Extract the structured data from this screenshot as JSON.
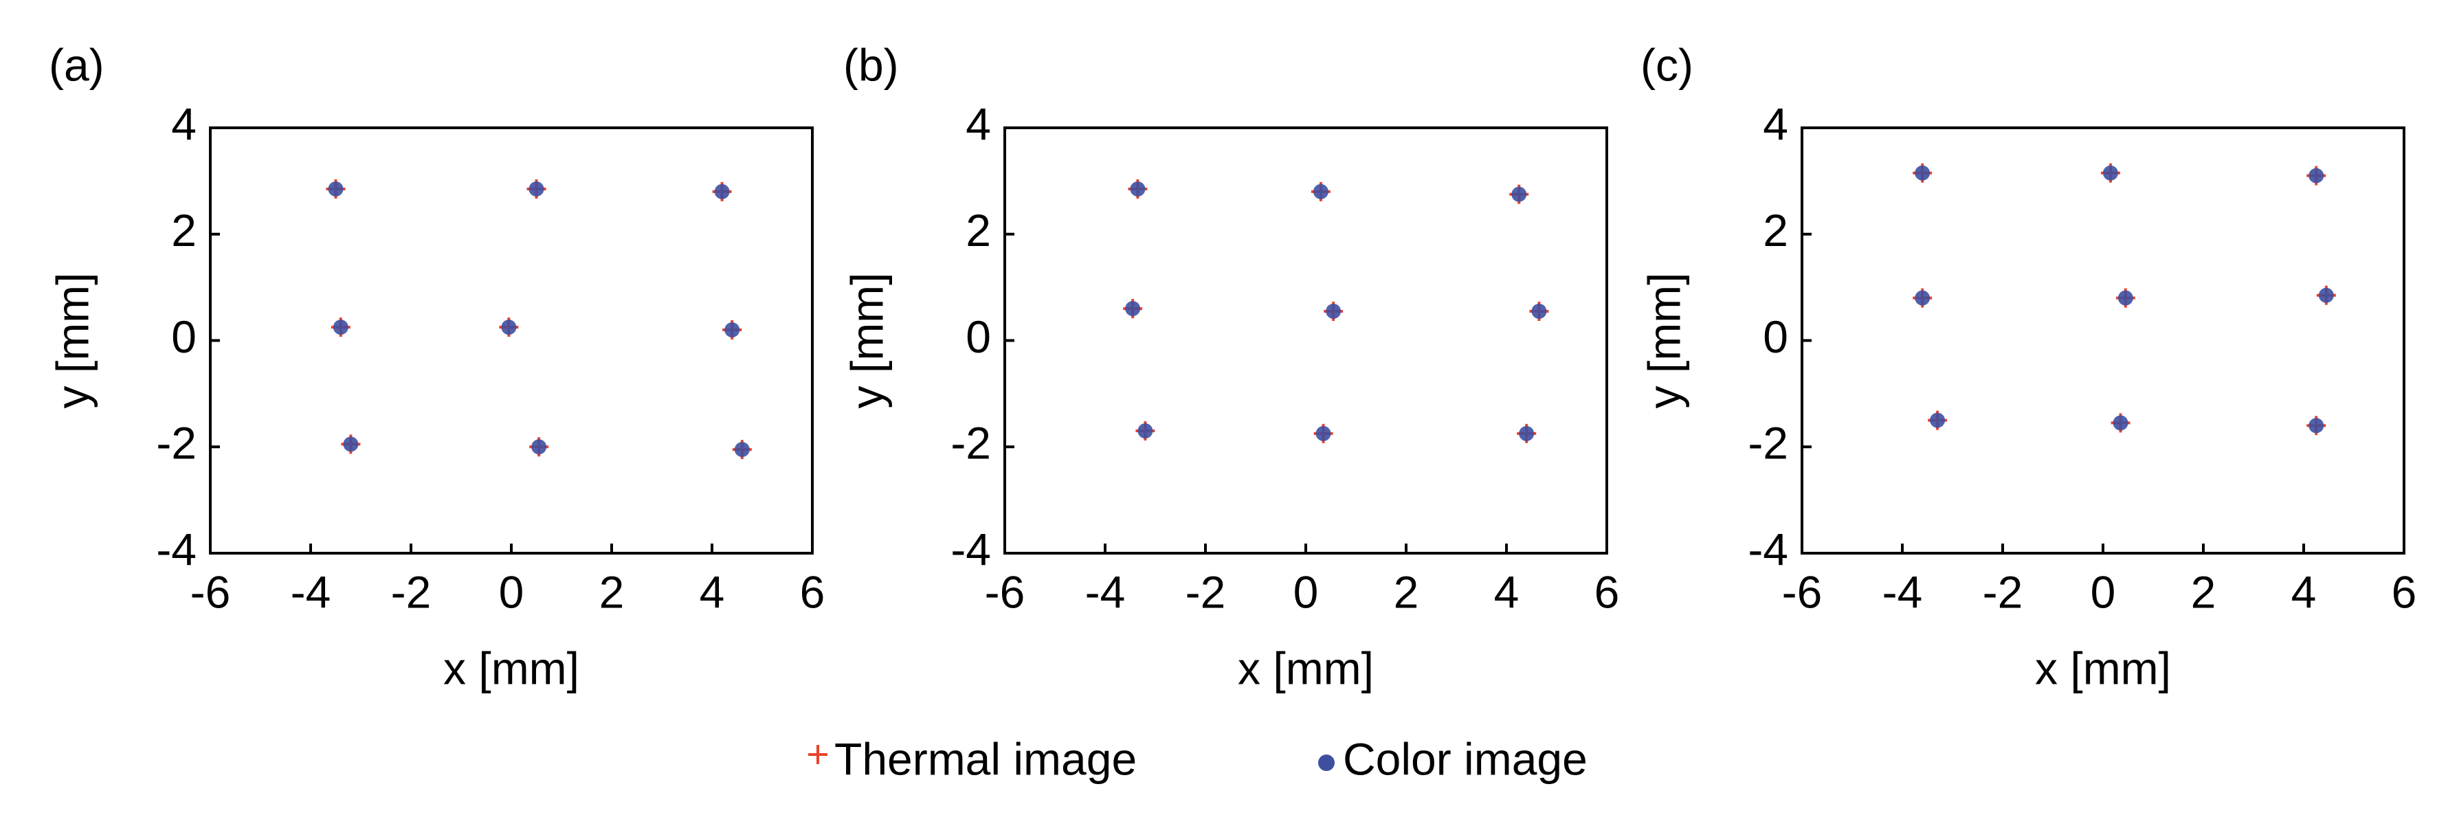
{
  "chart_data": [
    {
      "type": "scatter",
      "label": "(a)",
      "x_label": "x [mm]",
      "y_label": "y [mm]",
      "xlim": [
        -6,
        6
      ],
      "ylim": [
        -4,
        4
      ],
      "xticks": [
        -6,
        -4,
        -2,
        0,
        2,
        4,
        6
      ],
      "yticks": [
        -4,
        -2,
        0,
        2,
        4
      ],
      "series": [
        {
          "color": "#e8432b",
          "marker": "plus",
          "x": [
            -3.5,
            0.5,
            4.2,
            -3.4,
            -0.05,
            4.4,
            -3.2,
            0.55,
            4.6
          ],
          "values": [
            2.85,
            2.85,
            2.8,
            0.25,
            0.25,
            0.2,
            -1.95,
            -2.0,
            -2.05
          ]
        },
        {
          "color": "#3f4fa0",
          "marker": "dot",
          "x": [
            -3.5,
            0.5,
            4.2,
            -3.4,
            -0.05,
            4.4,
            -3.2,
            0.55,
            4.6
          ],
          "values": [
            2.85,
            2.85,
            2.8,
            0.25,
            0.25,
            0.2,
            -1.95,
            -2.0,
            -2.05
          ]
        }
      ]
    },
    {
      "type": "scatter",
      "label": "(b)",
      "x_label": "x [mm]",
      "y_label": "y [mm]",
      "xlim": [
        -6,
        6
      ],
      "ylim": [
        -4,
        4
      ],
      "xticks": [
        -6,
        -4,
        -2,
        0,
        2,
        4,
        6
      ],
      "yticks": [
        -4,
        -2,
        0,
        2,
        4
      ],
      "series": [
        {
          "color": "#e8432b",
          "marker": "plus",
          "x": [
            -3.35,
            0.3,
            4.25,
            -3.45,
            0.55,
            4.65,
            -3.2,
            0.35,
            4.4
          ],
          "values": [
            2.85,
            2.8,
            2.75,
            0.6,
            0.55,
            0.55,
            -1.7,
            -1.75,
            -1.75
          ]
        },
        {
          "color": "#3f4fa0",
          "marker": "dot",
          "x": [
            -3.35,
            0.3,
            4.25,
            -3.45,
            0.55,
            4.65,
            -3.2,
            0.35,
            4.4
          ],
          "values": [
            2.85,
            2.8,
            2.75,
            0.6,
            0.55,
            0.55,
            -1.7,
            -1.75,
            -1.75
          ]
        }
      ]
    },
    {
      "type": "scatter",
      "label": "(c)",
      "x_label": "x [mm]",
      "y_label": "y [mm]",
      "xlim": [
        -6,
        6
      ],
      "ylim": [
        -4,
        4
      ],
      "xticks": [
        -6,
        -4,
        -2,
        0,
        2,
        4,
        6
      ],
      "yticks": [
        -4,
        -2,
        0,
        2,
        4
      ],
      "series": [
        {
          "color": "#e8432b",
          "marker": "plus",
          "x": [
            -3.6,
            0.15,
            4.25,
            -3.6,
            0.45,
            4.45,
            -3.3,
            0.35,
            4.25
          ],
          "values": [
            3.15,
            3.15,
            3.1,
            0.8,
            0.8,
            0.85,
            -1.5,
            -1.55,
            -1.6
          ]
        },
        {
          "color": "#3f4fa0",
          "marker": "dot",
          "x": [
            -3.6,
            0.15,
            4.25,
            -3.6,
            0.45,
            4.45,
            -3.3,
            0.35,
            4.25
          ],
          "values": [
            3.15,
            3.15,
            3.1,
            0.8,
            0.8,
            0.85,
            -1.5,
            -1.55,
            -1.6
          ]
        }
      ]
    }
  ],
  "legend": [
    "Thermal image",
    "Color image"
  ]
}
